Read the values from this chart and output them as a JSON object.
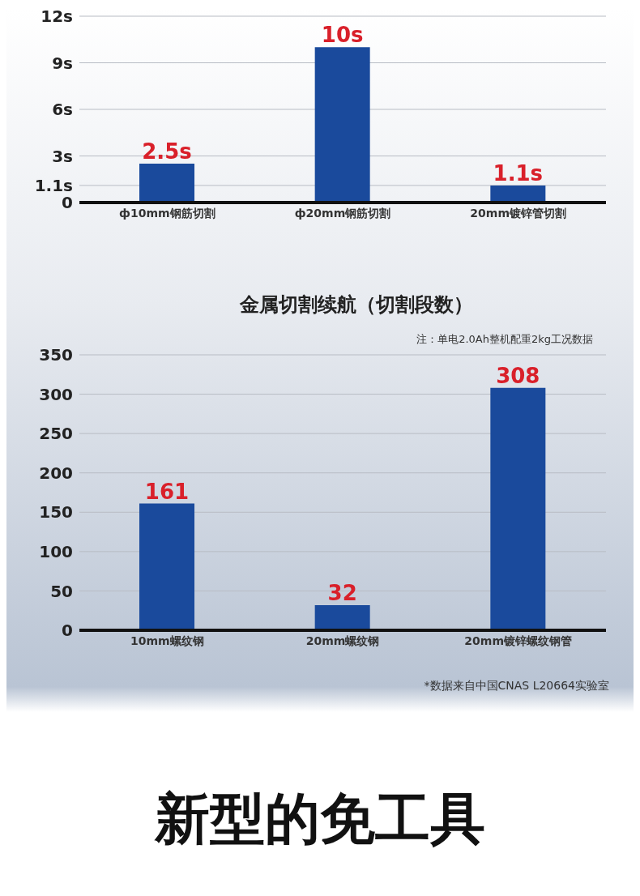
{
  "chart_data": [
    {
      "type": "bar",
      "categories": [
        "ф10mm钢筋切割",
        "ф20mm钢筋切割",
        "20mm镀锌管切割"
      ],
      "values": [
        2.5,
        10,
        1.1
      ],
      "color": "#1a4a9c",
      "value_labels": [
        "2.5s",
        "10s",
        "1.1s"
      ],
      "ylim": [
        0,
        12
      ],
      "yticks": [
        0,
        {
          "value": 1.1,
          "label": "1.1s"
        },
        {
          "value": 3,
          "label": "3s"
        },
        {
          "value": 6,
          "label": "6s"
        },
        {
          "value": 9,
          "label": "9s"
        },
        {
          "value": 12,
          "label": "12s"
        }
      ],
      "grid": "y"
    },
    {
      "type": "bar",
      "title": "金属切割续航（切割段数）",
      "subtitle": "注：单电2.0Ah整机配重2kg工况数据",
      "categories": [
        "10mm螺纹钢",
        "20mm螺纹钢",
        "20mm镀锌螺纹钢管"
      ],
      "values": [
        161,
        32,
        308
      ],
      "color": "#1a4a9c",
      "data_labels": true,
      "ylim": [
        0,
        350
      ],
      "yticks": [
        0,
        50,
        100,
        150,
        200,
        250,
        300,
        350
      ],
      "grid": "y",
      "annotations": [
        "*数据来自中国CNAS L20664实验室",
        "新型的免工具"
      ]
    }
  ]
}
